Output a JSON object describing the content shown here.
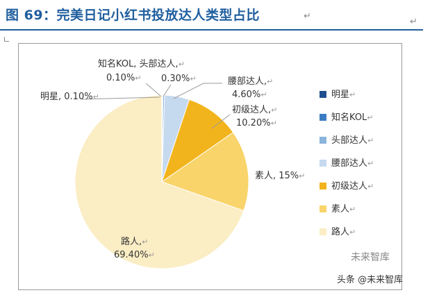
{
  "title": "图 69：完美日记小红书投放达人类型占比",
  "para_mark": "↵",
  "chart_data": {
    "type": "pie",
    "slices": [
      {
        "name": "明星",
        "value": 0.1,
        "label": "明星, 0.10%",
        "color": "#1f4e8f"
      },
      {
        "name": "知名KOL",
        "value": 0.1,
        "label_lines": [
          "知名KOL, 头部达人,",
          "0.10%"
        ],
        "color": "#3b7cc4"
      },
      {
        "name": "头部达人",
        "value": 0.3,
        "label_lines": [
          "0.30%"
        ],
        "color": "#8ab4dc"
      },
      {
        "name": "腰部达人",
        "value": 4.6,
        "label_lines": [
          "腰部达人,",
          "4.60%"
        ],
        "color": "#c6daef"
      },
      {
        "name": "初级达人",
        "value": 10.2,
        "label_lines": [
          "初级达人,",
          "10.20%"
        ],
        "color": "#f2b41c"
      },
      {
        "name": "素人",
        "value": 15.0,
        "label_lines": [
          "素人, 15%"
        ],
        "color": "#f8d46a"
      },
      {
        "name": "路人",
        "value": 69.4,
        "label_lines": [
          "路人,",
          "69.40%"
        ],
        "color": "#fbedc4"
      }
    ],
    "legend": [
      "明星",
      "知名KOL",
      "头部达人",
      "腰部达人",
      "初级达人",
      "素人",
      "路人"
    ],
    "legend_position": "right"
  },
  "watermark": {
    "text": "头条 @未来智库",
    "logo_text": "未来智库"
  }
}
